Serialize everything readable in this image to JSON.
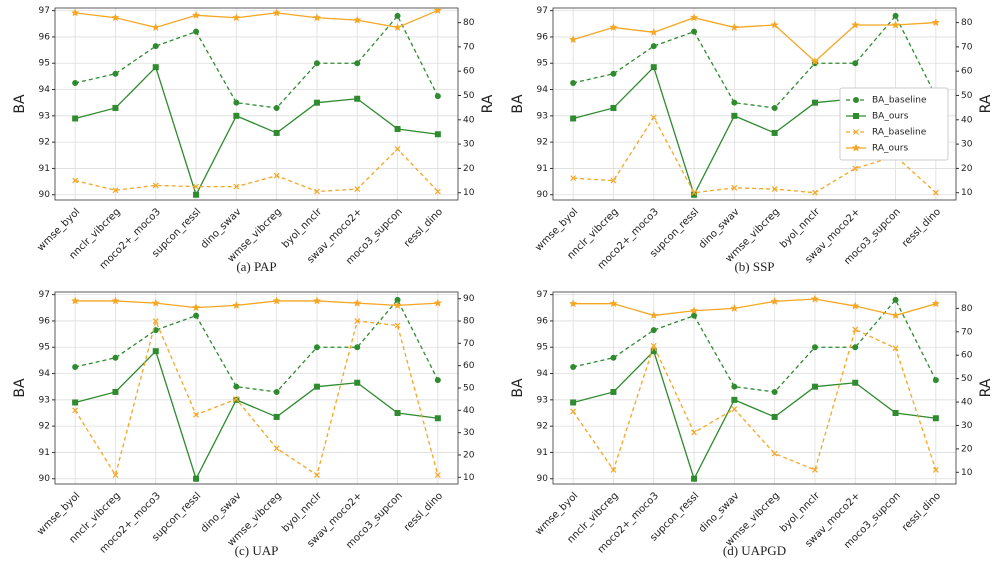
{
  "chart_data": [
    {
      "type": "line",
      "title": "(a) PAP",
      "ylabel": "BA",
      "y2label": "RA",
      "categories": [
        "wmse_byol",
        "nnclr_vibcreg",
        "moco2+_moco3",
        "supcon_ressl",
        "dino_swav",
        "wmse_vibcreg",
        "byol_nnclr",
        "swav_moco2+",
        "moco3_supcon",
        "ressl_dino"
      ],
      "ylim": [
        89.8,
        97.1
      ],
      "yticks": [
        90,
        91,
        92,
        93,
        94,
        95,
        96,
        97
      ],
      "y2lim": [
        7,
        86
      ],
      "y2ticks": [
        10,
        20,
        30,
        40,
        50,
        60,
        70,
        80
      ],
      "grid": true,
      "series": [
        {
          "name": "BA_baseline",
          "color": "#2e8b2e",
          "linestyle": "dashed",
          "marker": "circle",
          "values": [
            94.25,
            94.6,
            95.65,
            96.2,
            93.5,
            93.3,
            95.0,
            95.0,
            96.8,
            93.75
          ]
        },
        {
          "name": "BA_ours",
          "color": "#2e8b2e",
          "linestyle": "solid",
          "marker": "square",
          "values": [
            92.9,
            93.3,
            94.85,
            90.0,
            93.0,
            92.35,
            93.5,
            93.65,
            92.5,
            92.3
          ]
        },
        {
          "name": "RA_baseline",
          "color": "#f5a623",
          "linestyle": "dashed",
          "marker": "x",
          "axis": "y2",
          "values": [
            15,
            11,
            13,
            12.5,
            12.5,
            17,
            10.5,
            11.5,
            28,
            10.5
          ]
        },
        {
          "name": "RA_ours",
          "color": "#f5a623",
          "linestyle": "solid",
          "marker": "star",
          "axis": "y2",
          "values": [
            84,
            82,
            78,
            83,
            82,
            84,
            82,
            81,
            78,
            85
          ]
        }
      ]
    },
    {
      "type": "line",
      "title": "(b) SSP",
      "ylabel": "BA",
      "y2label": "RA",
      "categories": [
        "wmse_byol",
        "nnclr_vibcreg",
        "moco2+_moco3",
        "supcon_ressl",
        "dino_swav",
        "wmse_vibcreg",
        "byol_nnclr",
        "swav_moco2+",
        "moco3_supcon",
        "ressl_dino"
      ],
      "ylim": [
        89.8,
        97.1
      ],
      "yticks": [
        90,
        91,
        92,
        93,
        94,
        95,
        96,
        97
      ],
      "y2lim": [
        7,
        86
      ],
      "y2ticks": [
        10,
        20,
        30,
        40,
        50,
        60,
        70,
        80
      ],
      "grid": true,
      "legend": "center right",
      "series": [
        {
          "name": "BA_baseline",
          "color": "#2e8b2e",
          "linestyle": "dashed",
          "marker": "circle",
          "values": [
            94.25,
            94.6,
            95.65,
            96.2,
            93.5,
            93.3,
            95.0,
            95.0,
            96.8,
            93.75
          ]
        },
        {
          "name": "BA_ours",
          "color": "#2e8b2e",
          "linestyle": "solid",
          "marker": "square",
          "values": [
            92.9,
            93.3,
            94.85,
            90.0,
            93.0,
            92.35,
            93.5,
            93.65,
            92.5,
            92.3
          ]
        },
        {
          "name": "RA_baseline",
          "color": "#f5a623",
          "linestyle": "dashed",
          "marker": "x",
          "axis": "y2",
          "values": [
            16,
            15,
            41,
            10,
            12,
            11.5,
            10,
            20,
            25,
            10
          ]
        },
        {
          "name": "RA_ours",
          "color": "#f5a623",
          "linestyle": "solid",
          "marker": "star",
          "axis": "y2",
          "values": [
            73,
            78,
            76,
            82,
            78,
            79,
            64,
            79,
            79,
            80
          ]
        }
      ]
    },
    {
      "type": "line",
      "title": "(c) UAP",
      "ylabel": "BA",
      "categories": [
        "wmse_byol",
        "nnclr_vibcreg",
        "moco2+_moco3",
        "supcon_ressl",
        "dino_swav",
        "wmse_vibcreg",
        "byol_nnclr",
        "swav_moco2+",
        "moco3_supcon",
        "ressl_dino"
      ],
      "ylim": [
        89.8,
        97.1
      ],
      "yticks": [
        90,
        91,
        92,
        93,
        94,
        95,
        96,
        97
      ],
      "y2lim": [
        7,
        93
      ],
      "y2ticks": [
        10,
        20,
        30,
        40,
        50,
        60,
        70,
        80,
        90
      ],
      "grid": true,
      "series": [
        {
          "name": "BA_baseline",
          "color": "#2e8b2e",
          "linestyle": "dashed",
          "marker": "circle",
          "values": [
            94.25,
            94.6,
            95.65,
            96.2,
            93.5,
            93.3,
            95.0,
            95.0,
            96.8,
            93.75
          ]
        },
        {
          "name": "BA_ours",
          "color": "#2e8b2e",
          "linestyle": "solid",
          "marker": "square",
          "values": [
            92.9,
            93.3,
            94.85,
            90.0,
            93.0,
            92.35,
            93.5,
            93.65,
            92.5,
            92.3
          ]
        },
        {
          "name": "RA_baseline",
          "color": "#f5a623",
          "linestyle": "dashed",
          "marker": "x",
          "axis": "y2",
          "values": [
            40,
            11,
            80,
            38,
            45,
            23,
            11,
            80,
            78,
            11
          ]
        },
        {
          "name": "RA_ours",
          "color": "#f5a623",
          "linestyle": "solid",
          "marker": "star",
          "axis": "y2",
          "values": [
            89,
            89,
            88,
            86,
            87,
            89,
            89,
            88,
            87,
            88
          ]
        }
      ]
    },
    {
      "type": "line",
      "title": "(d) UAPGD",
      "ylabel": "BA",
      "y2label": "RA",
      "categories": [
        "wmse_byol",
        "nnclr_vibcreg",
        "moco2+_moco3",
        "supcon_ressl",
        "dino_swav",
        "wmse_vibcreg",
        "byol_nnclr",
        "swav_moco2+",
        "moco3_supcon",
        "ressl_dino"
      ],
      "ylim": [
        89.8,
        97.1
      ],
      "yticks": [
        90,
        91,
        92,
        93,
        94,
        95,
        96,
        97
      ],
      "y2lim": [
        5,
        87
      ],
      "y2ticks": [
        10,
        20,
        30,
        40,
        50,
        60,
        70,
        80
      ],
      "grid": true,
      "series": [
        {
          "name": "BA_baseline",
          "color": "#2e8b2e",
          "linestyle": "dashed",
          "marker": "circle",
          "values": [
            94.25,
            94.6,
            95.65,
            96.2,
            93.5,
            93.3,
            95.0,
            95.0,
            96.8,
            93.75
          ]
        },
        {
          "name": "BA_ours",
          "color": "#2e8b2e",
          "linestyle": "solid",
          "marker": "square",
          "values": [
            92.9,
            93.3,
            94.85,
            90.0,
            93.0,
            92.35,
            93.5,
            93.65,
            92.5,
            92.3
          ]
        },
        {
          "name": "RA_baseline",
          "color": "#f5a623",
          "linestyle": "dashed",
          "marker": "x",
          "axis": "y2",
          "values": [
            36,
            11,
            64,
            27,
            37,
            18,
            11,
            71,
            63,
            11
          ]
        },
        {
          "name": "RA_ours",
          "color": "#f5a623",
          "linestyle": "solid",
          "marker": "star",
          "axis": "y2",
          "values": [
            82,
            82,
            77,
            79,
            80,
            83,
            84,
            81,
            77,
            82
          ]
        }
      ]
    }
  ]
}
